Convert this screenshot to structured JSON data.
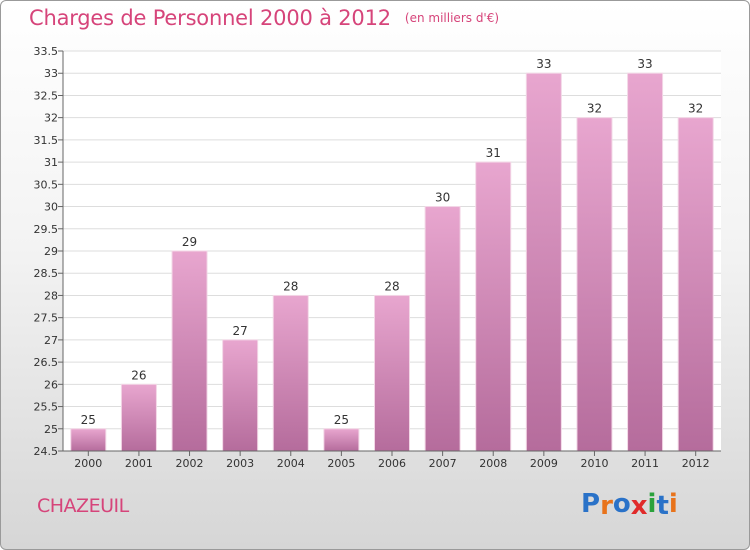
{
  "title": "Charges de Personnel 2000 à 2012",
  "subtitle": "(en milliers d'€)",
  "commune": "CHAZEUIL",
  "logo": {
    "letters": [
      "P",
      "r",
      "o",
      "x",
      "i",
      "t",
      "i"
    ],
    "colors": [
      "#2a72c8",
      "#e8731b",
      "#2a72c8",
      "#e02a2a",
      "#2aa23c",
      "#2a72c8",
      "#e8731b"
    ]
  },
  "colors": {
    "title": "#d6447a",
    "bar_light": "#e8a6cf",
    "bar_dark": "#b56c9c",
    "grid": "#dddddd"
  },
  "chart_data": {
    "type": "bar",
    "categories": [
      "2000",
      "2001",
      "2002",
      "2003",
      "2004",
      "2005",
      "2006",
      "2007",
      "2008",
      "2009",
      "2010",
      "2011",
      "2012"
    ],
    "values": [
      25,
      26,
      29,
      27,
      28,
      25,
      28,
      30,
      31,
      33,
      32,
      33,
      32
    ],
    "data_labels": [
      "25",
      "26",
      "29",
      "27",
      "28",
      "25",
      "28",
      "30",
      "31",
      "33",
      "32",
      "33",
      "32"
    ],
    "ylim": [
      24.5,
      33.5
    ],
    "yticks": [
      "24.5",
      "25",
      "25.5",
      "26",
      "26.5",
      "27",
      "27.5",
      "28",
      "28.5",
      "29",
      "29.5",
      "30",
      "30.5",
      "31",
      "31.5",
      "32",
      "32.5",
      "33",
      "33.5"
    ],
    "xlabel": "",
    "ylabel": "",
    "grid": true
  }
}
